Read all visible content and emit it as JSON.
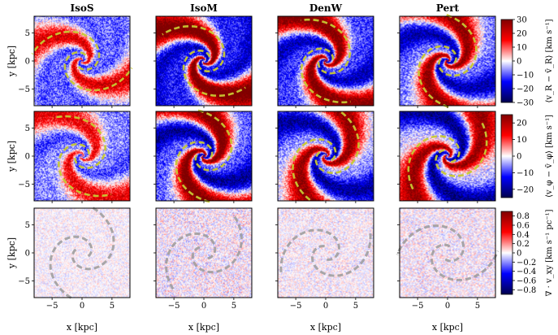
{
  "chart_data": {
    "type": "heatmap",
    "columns": [
      "IsoS",
      "IsoM",
      "DenW",
      "Pert"
    ],
    "xlabel": "x [kpc]",
    "ylabel": "y [kpc]",
    "xlim": [
      -8,
      8
    ],
    "ylim": [
      -8,
      8
    ],
    "xticks": [
      -5,
      0,
      5
    ],
    "yticks": [
      -5,
      0,
      5
    ],
    "rows": [
      {
        "quantity": "radial velocity residual",
        "colorbar_label": "⟨v_R − v̄_R⟩ [km s⁻¹]",
        "colormap": "seismic",
        "vmin": -30,
        "vmax": 30,
        "ticks": [
          -30,
          -20,
          -10,
          0,
          10,
          20,
          30
        ],
        "overlay_dash_color": "#c8c832",
        "panel_strength": [
          0.55,
          0.95,
          0.9,
          0.85
        ]
      },
      {
        "quantity": "azimuthal velocity residual",
        "colorbar_label": "⟨v_φ − v̄_φ⟩ [km s⁻¹]",
        "colormap": "seismic",
        "vmin": -25,
        "vmax": 25,
        "ticks": [
          -20,
          -10,
          0,
          10,
          20
        ],
        "overlay_dash_color": "#c8c832",
        "panel_strength": [
          0.5,
          0.95,
          0.85,
          0.85
        ]
      },
      {
        "quantity": "velocity divergence",
        "colorbar_label": "∇ · v_xy [km s⁻¹ pc⁻¹]",
        "colormap": "seismic",
        "vmin": -0.9,
        "vmax": 0.9,
        "ticks": [
          -0.8,
          -0.6,
          -0.4,
          -0.2,
          0.0,
          0.2,
          0.4,
          0.6,
          0.8
        ],
        "overlay_dash_color": "#9a9a9a",
        "panel_strength": [
          0.12,
          0.2,
          0.15,
          0.18
        ]
      }
    ]
  }
}
